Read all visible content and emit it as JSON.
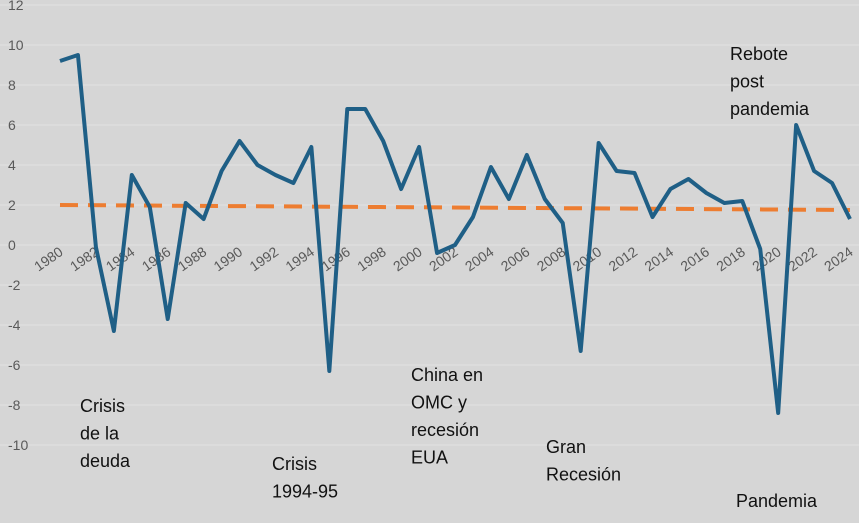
{
  "chart_data": {
    "type": "line",
    "x": [
      1980,
      1981,
      1982,
      1983,
      1984,
      1985,
      1986,
      1987,
      1988,
      1989,
      1990,
      1991,
      1992,
      1993,
      1994,
      1995,
      1996,
      1997,
      1998,
      1999,
      2000,
      2001,
      2002,
      2003,
      2004,
      2005,
      2006,
      2007,
      2008,
      2009,
      2010,
      2011,
      2012,
      2013,
      2014,
      2015,
      2016,
      2017,
      2018,
      2019,
      2020,
      2021,
      2022,
      2023,
      2024
    ],
    "series": [
      {
        "color": "#1f5f86",
        "values": [
          9.2,
          9.5,
          -0.1,
          -4.3,
          3.5,
          1.9,
          -3.7,
          2.1,
          1.3,
          3.7,
          5.2,
          4.0,
          3.5,
          3.1,
          4.9,
          -6.3,
          6.8,
          6.8,
          5.2,
          2.8,
          4.9,
          -0.4,
          0.0,
          1.4,
          3.9,
          2.3,
          4.5,
          2.3,
          1.1,
          -5.3,
          5.1,
          3.7,
          3.6,
          1.4,
          2.8,
          3.3,
          2.6,
          2.1,
          2.2,
          -0.2,
          -8.4,
          6.0,
          3.7,
          3.1,
          1.3
        ]
      }
    ],
    "trendline": {
      "color": "#ed7d31",
      "x": [
        1980,
        2024
      ],
      "values": [
        2.0,
        1.75
      ]
    },
    "xlim": [
      1980,
      2024
    ],
    "xticks": [
      1980,
      1982,
      1984,
      1986,
      1988,
      1990,
      1992,
      1994,
      1996,
      1998,
      2000,
      2002,
      2004,
      2006,
      2008,
      2010,
      2012,
      2014,
      2016,
      2018,
      2020,
      2022,
      2024
    ],
    "ylim": [
      -10,
      12
    ],
    "yticks": [
      12,
      10,
      8,
      6,
      4,
      2,
      0,
      -2,
      -4,
      -6,
      -8,
      -10
    ],
    "grid": true,
    "annotations": [
      {
        "lines": [
          "Crisis",
          "de la",
          "deuda"
        ]
      },
      {
        "lines": [
          "Crisis",
          "1994-95"
        ]
      },
      {
        "lines": [
          "China en",
          "OMC y",
          "recesión",
          "EUA"
        ]
      },
      {
        "lines": [
          "Gran",
          "Recesión"
        ]
      },
      {
        "lines": [
          "Rebote",
          "post",
          "pandemia"
        ]
      },
      {
        "lines": [
          "Pandemia"
        ]
      }
    ]
  }
}
